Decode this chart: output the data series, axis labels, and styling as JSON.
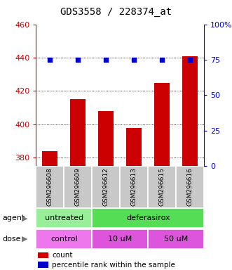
{
  "title": "GDS3558 / 228374_at",
  "samples": [
    "GSM296608",
    "GSM296609",
    "GSM296612",
    "GSM296613",
    "GSM296615",
    "GSM296616"
  ],
  "counts": [
    384,
    415,
    408,
    398,
    425,
    441
  ],
  "percentile_ranks": [
    75,
    75,
    75,
    75,
    75,
    75
  ],
  "ylim_left": [
    375,
    460
  ],
  "ylim_right": [
    0,
    100
  ],
  "yticks_left": [
    380,
    400,
    420,
    440,
    460
  ],
  "yticks_right": [
    0,
    25,
    50,
    75,
    100
  ],
  "bar_color": "#cc0000",
  "dot_color": "#0000cc",
  "legend_count_label": "count",
  "legend_pct_label": "percentile rank within the sample",
  "left_axis_color": "#cc0000",
  "right_axis_color": "#0000cc",
  "bg_color": "#ffffff",
  "plot_bg_color": "#ffffff",
  "tick_bg_color": "#c8c8c8",
  "agent_groups": [
    {
      "label": "untreated",
      "start": 0,
      "end": 2,
      "color": "#99ee99"
    },
    {
      "label": "deferasirox",
      "start": 2,
      "end": 6,
      "color": "#55dd55"
    }
  ],
  "dose_groups": [
    {
      "label": "control",
      "start": 0,
      "end": 2,
      "color": "#ee77ee"
    },
    {
      "label": "10 uM",
      "start": 2,
      "end": 4,
      "color": "#dd55dd"
    },
    {
      "label": "50 uM",
      "start": 4,
      "end": 6,
      "color": "#dd55dd"
    }
  ]
}
